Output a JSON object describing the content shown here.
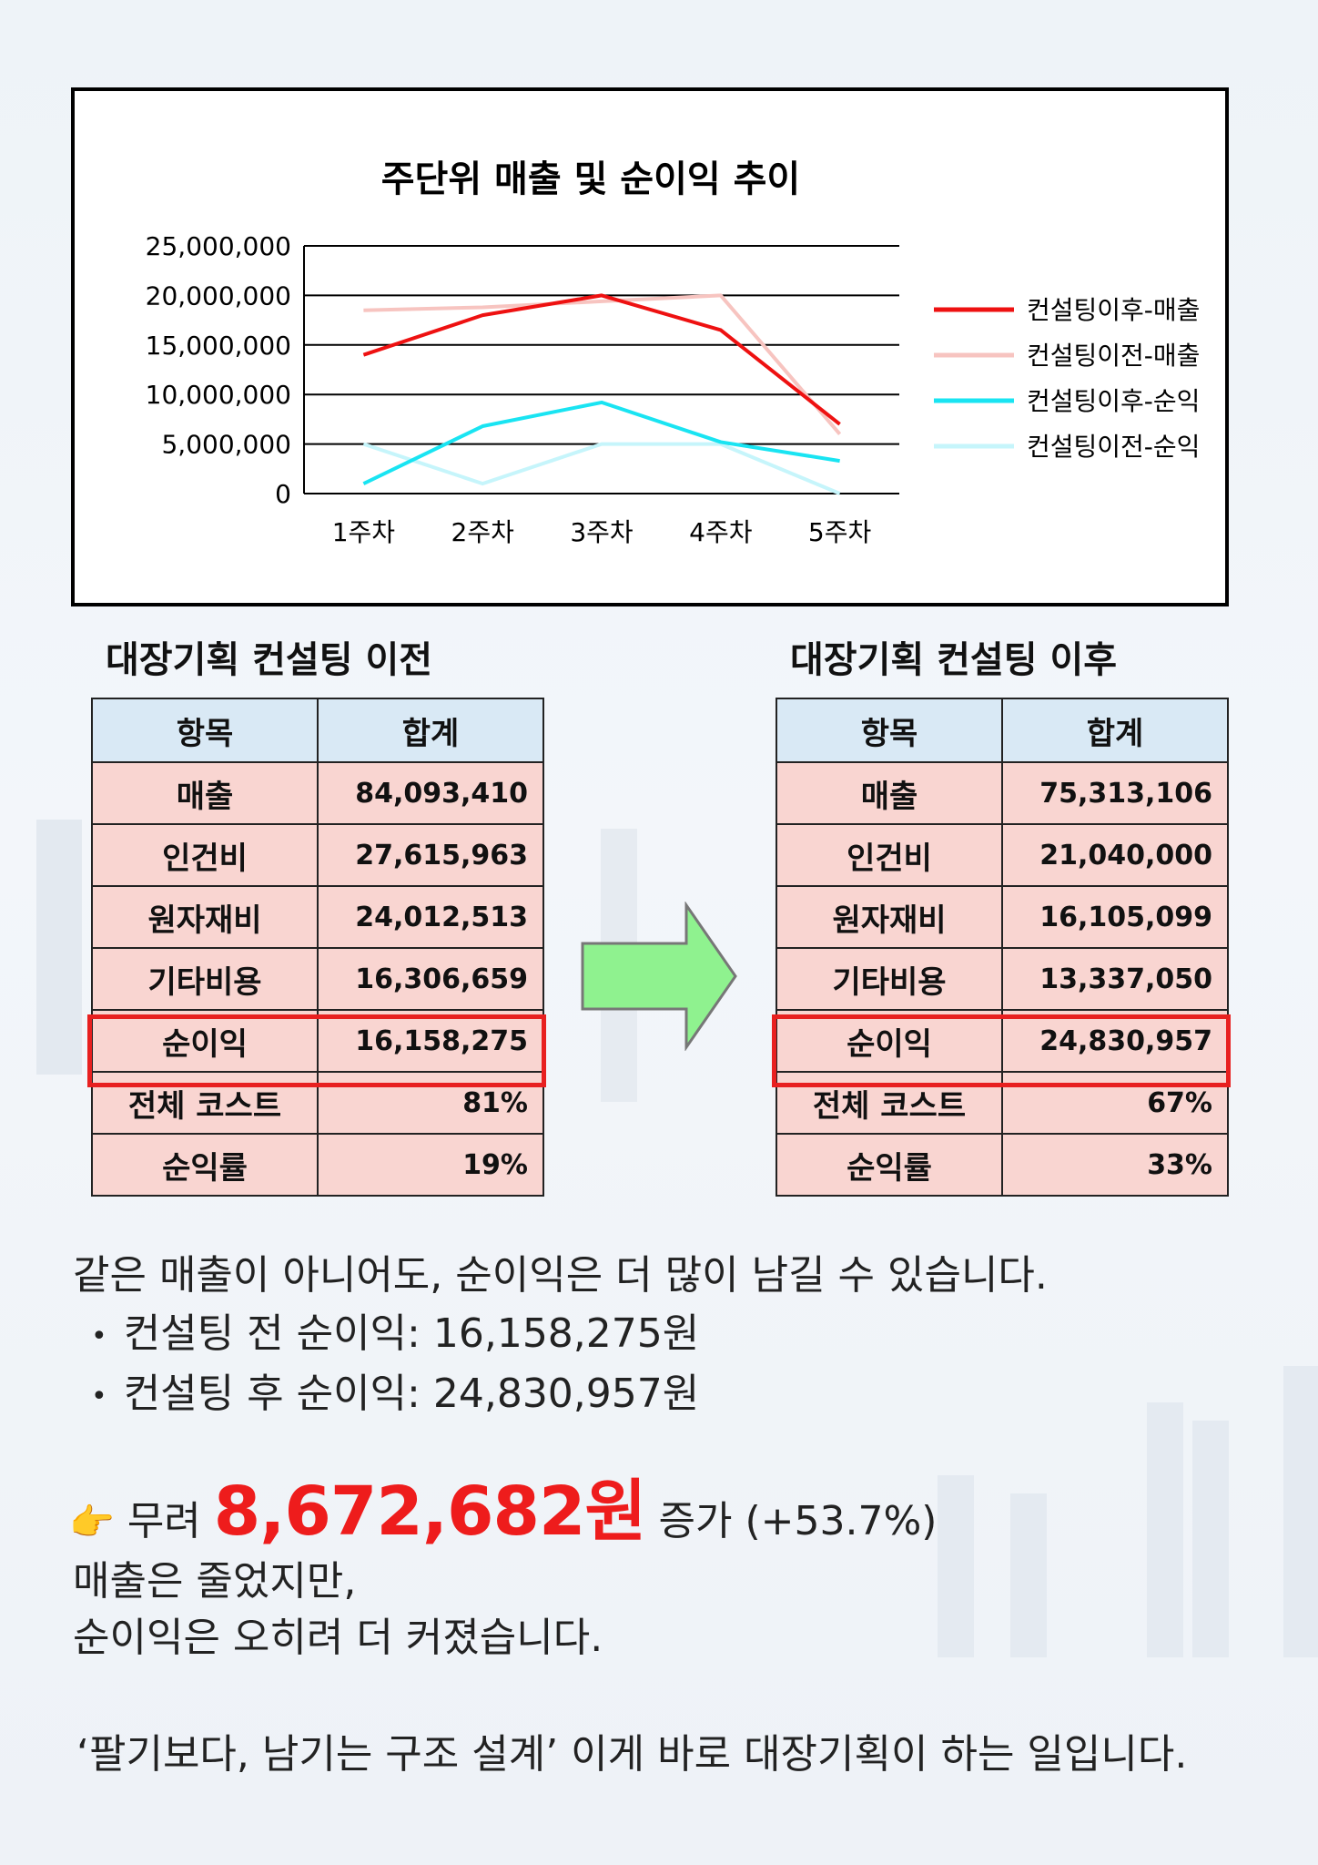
{
  "chart_data": {
    "type": "line",
    "title": "주단위 매출 및 순이익 추이",
    "categories": [
      "1주차",
      "2주차",
      "3주차",
      "4주차",
      "5주차"
    ],
    "y_tick_labels": [
      "25,000,000",
      "20,000,000",
      "15,000,000",
      "10,000,000",
      "5,000,000",
      "0"
    ],
    "ylim": [
      0,
      25000000
    ],
    "grid": true,
    "legend_position": "right",
    "series": [
      {
        "name": "컨설팅이후-매출",
        "color": "#ee1111",
        "values": [
          14000000,
          18000000,
          20000000,
          16500000,
          7000000
        ]
      },
      {
        "name": "컨설팅이전-매출",
        "color": "#f7c4c0",
        "values": [
          18500000,
          18800000,
          19400000,
          20000000,
          6000000
        ]
      },
      {
        "name": "컨설팅이후-순익",
        "color": "#19e4f2",
        "values": [
          1000000,
          6800000,
          9200000,
          5200000,
          3300000
        ]
      },
      {
        "name": "컨설팅이전-순익",
        "color": "#c6f5fb",
        "values": [
          5000000,
          1000000,
          5000000,
          5000000,
          0
        ]
      }
    ]
  },
  "table_before": {
    "heading": "대장기획 컨설팅 이전",
    "header": [
      "항목",
      "합계"
    ],
    "rows": [
      {
        "item": "매출",
        "value": "84,093,410"
      },
      {
        "item": "인건비",
        "value": "27,615,963"
      },
      {
        "item": "원자재비",
        "value": "24,012,513"
      },
      {
        "item": "기타비용",
        "value": "16,306,659"
      },
      {
        "item": "순이익",
        "value": "16,158,275"
      },
      {
        "item": "전체 코스트",
        "value": "81%"
      },
      {
        "item": "순익률",
        "value": "19%"
      }
    ]
  },
  "table_after": {
    "heading": "대장기획 컨설팅 이후",
    "header": [
      "항목",
      "합계"
    ],
    "rows": [
      {
        "item": "매출",
        "value": "75,313,106"
      },
      {
        "item": "인건비",
        "value": "21,040,000"
      },
      {
        "item": "원자재비",
        "value": "16,105,099"
      },
      {
        "item": "기타비용",
        "value": "13,337,050"
      },
      {
        "item": "순이익",
        "value": "24,830,957"
      },
      {
        "item": "전체 코스트",
        "value": "67%"
      },
      {
        "item": "순익률",
        "value": "33%"
      }
    ]
  },
  "text": {
    "line1": "같은 매출이 아니어도, 순이익은 더 많이 남길 수 있습니다.",
    "bullet1": "컨설팅 전 순이익: 16,158,275원",
    "bullet2": "컨설팅 후 순이익: 24,830,957원",
    "pointer_emoji": "👉",
    "prefix": "무려",
    "amount": "8,672,682원",
    "suffix": "증가 (+53.7%)",
    "line3": "매출은 줄었지만,",
    "line4": "순이익은 오히려 더 커졌습니다.",
    "line5": "‘팔기보다, 남기는 구조 설계’ 이게 바로 대장기획이 하는 일입니다."
  },
  "colors": {
    "header_bg": "#d9e9f5",
    "cell_bg": "#f9d5d1",
    "highlight": "#e82020",
    "arrow": "#8ff28f",
    "amount": "#ee1c1c"
  }
}
